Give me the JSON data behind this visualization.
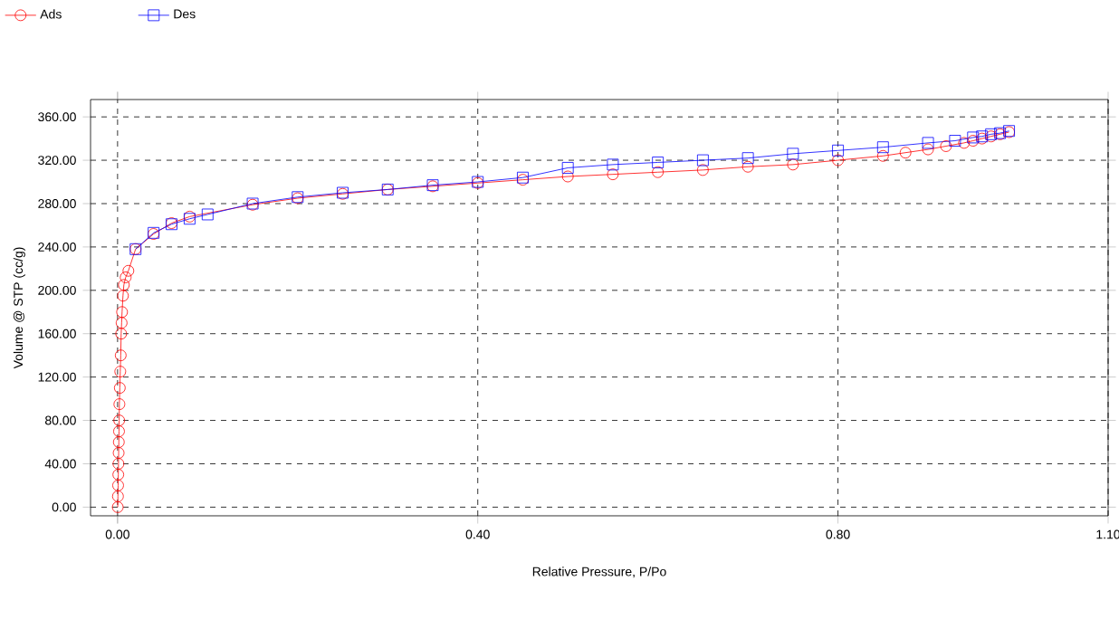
{
  "chart_data": {
    "type": "line",
    "xlabel": "Relative Pressure, P/Po",
    "ylabel": "Volume @ STP (cc/g)",
    "xlim": [
      -0.03,
      1.1
    ],
    "ylim": [
      -8,
      376
    ],
    "xticks": [
      {
        "value": 0,
        "label": "0.00"
      },
      {
        "value": 0.4,
        "label": "0.40"
      },
      {
        "value": 0.8,
        "label": "0.80"
      },
      {
        "value": 1.1,
        "label": "1.10"
      }
    ],
    "yticks": [
      {
        "value": 0,
        "label": "0.00"
      },
      {
        "value": 40,
        "label": "40.00"
      },
      {
        "value": 80,
        "label": "80.00"
      },
      {
        "value": 120,
        "label": "120.00"
      },
      {
        "value": 160,
        "label": "160.00"
      },
      {
        "value": 200,
        "label": "200.00"
      },
      {
        "value": 240,
        "label": "240.00"
      },
      {
        "value": 280,
        "label": "280.00"
      },
      {
        "value": 320,
        "label": "320.00"
      },
      {
        "value": 360,
        "label": "360.00"
      }
    ],
    "grid": true,
    "legend": "top left",
    "series": [
      {
        "name": "Ads",
        "color": "#ff0000",
        "marker": "circle",
        "x": [
          0.0002,
          0.0004,
          0.0006,
          0.0008,
          0.001,
          0.0012,
          0.0014,
          0.0016,
          0.0018,
          0.002,
          0.0025,
          0.003,
          0.0035,
          0.004,
          0.0045,
          0.005,
          0.006,
          0.007,
          0.009,
          0.012,
          0.02,
          0.04,
          0.06,
          0.08,
          0.15,
          0.2,
          0.25,
          0.3,
          0.35,
          0.4,
          0.45,
          0.5,
          0.55,
          0.6,
          0.65,
          0.7,
          0.75,
          0.8,
          0.85,
          0.875,
          0.9,
          0.92,
          0.94,
          0.95,
          0.96,
          0.97,
          0.98,
          0.99
        ],
        "values": [
          0,
          10,
          20,
          30,
          40,
          50,
          60,
          70,
          80,
          95,
          110,
          125,
          140,
          160,
          170,
          180,
          195,
          205,
          212,
          218,
          238,
          252,
          262,
          268,
          279,
          285,
          289,
          293,
          296,
          299,
          302,
          305,
          307,
          309,
          311,
          314,
          316,
          320,
          324,
          327,
          330,
          333,
          336,
          338,
          340,
          342,
          344,
          346
        ]
      },
      {
        "name": "Des",
        "color": "#0000ff",
        "marker": "square",
        "x": [
          0.99,
          0.98,
          0.97,
          0.96,
          0.95,
          0.93,
          0.9,
          0.85,
          0.8,
          0.75,
          0.7,
          0.65,
          0.6,
          0.55,
          0.5,
          0.45,
          0.4,
          0.35,
          0.3,
          0.25,
          0.2,
          0.15,
          0.1,
          0.08,
          0.06,
          0.04,
          0.02
        ],
        "values": [
          347,
          345,
          344,
          342,
          341,
          338,
          336,
          332,
          329,
          326,
          322,
          320,
          318,
          316,
          313,
          304,
          300,
          297,
          293,
          290,
          286,
          280,
          270,
          266,
          261,
          253,
          238
        ]
      }
    ]
  }
}
